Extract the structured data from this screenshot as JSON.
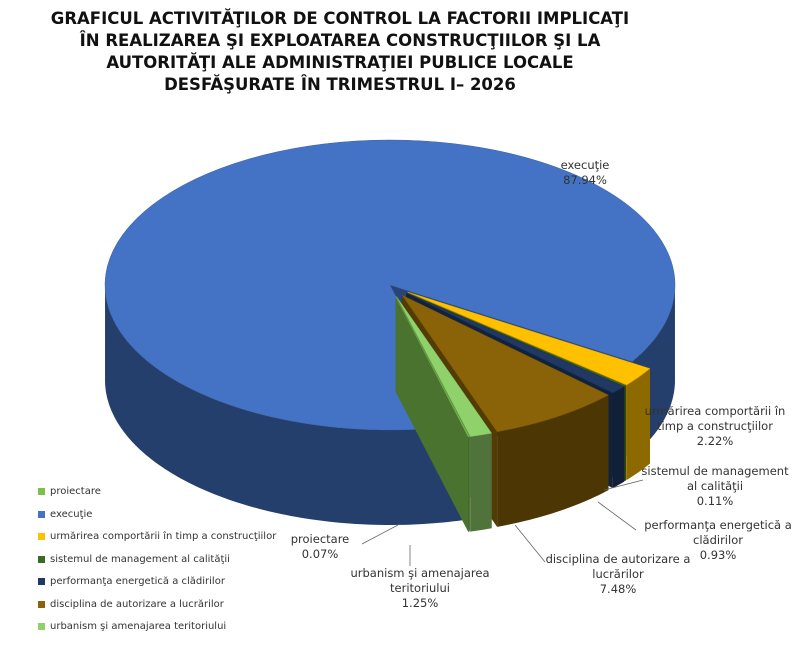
{
  "chart_data": {
    "type": "pie3d",
    "title": "GRAFICUL ACTIVITĂŢILOR DE CONTROL LA FACTORII IMPLICAŢI ÎN REALIZAREA ŞI EXPLOATAREA CONSTRUCŢIILOR ŞI LA AUTORITĂŢI ALE ADMINISTRAŢIEI PUBLICE LOCALE DESFĂŞURATE ÎN TRIMESTRUL I– 2026",
    "categories": [
      "proiectare",
      "execuţie",
      "urmărirea comportării în timp a construcţiilor",
      "sistemul de management al calităţii",
      "performanţa energetică a clădirilor",
      "disciplina de autorizare a lucrărilor",
      "urbanism şi amenajarea teritoriului"
    ],
    "values": [
      0.07,
      87.94,
      2.22,
      0.11,
      0.93,
      7.48,
      1.25
    ],
    "value_labels": [
      "0.07%",
      "87.94%",
      "2.22%",
      "0.11%",
      "0.93%",
      "7.48%",
      "1.25%"
    ],
    "colors": [
      "#7cbf4e",
      "#4472c4",
      "#ffc000",
      "#3b6a26",
      "#1f3864",
      "#8a6207",
      "#8fd16a"
    ],
    "legend": "left"
  }
}
